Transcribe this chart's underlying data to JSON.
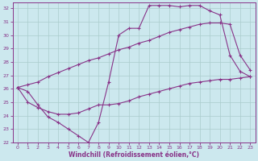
{
  "xlabel": "Windchill (Refroidissement éolien,°C)",
  "xlim": [
    -0.5,
    23.5
  ],
  "ylim": [
    22,
    32.4
  ],
  "yticks": [
    22,
    23,
    24,
    25,
    26,
    27,
    28,
    29,
    30,
    31,
    32
  ],
  "xticks": [
    0,
    1,
    2,
    3,
    4,
    5,
    6,
    7,
    8,
    9,
    10,
    11,
    12,
    13,
    14,
    15,
    16,
    17,
    18,
    19,
    20,
    21,
    22,
    23
  ],
  "bg_color": "#cce8ee",
  "line_color": "#883388",
  "grid_color": "#aacccc",
  "line1_x": [
    0,
    1,
    2,
    3,
    4,
    5,
    6,
    7,
    8,
    9,
    10,
    11,
    12,
    13,
    14,
    15,
    16,
    17,
    18,
    19,
    20,
    21,
    22,
    23
  ],
  "line1_y": [
    26.1,
    25.8,
    24.8,
    23.9,
    23.5,
    23.0,
    22.5,
    22.0,
    23.5,
    26.5,
    30.0,
    30.5,
    30.5,
    32.2,
    32.2,
    32.2,
    32.1,
    32.2,
    32.2,
    31.8,
    31.5,
    28.5,
    27.3,
    26.9
  ],
  "line2_x": [
    0,
    1,
    2,
    3,
    4,
    5,
    6,
    7,
    8,
    9,
    10,
    11,
    12,
    13,
    14,
    15,
    16,
    17,
    18,
    19,
    20,
    21,
    22,
    23
  ],
  "line2_y": [
    26.1,
    26.3,
    26.5,
    26.9,
    27.2,
    27.5,
    27.8,
    28.1,
    28.3,
    28.6,
    28.9,
    29.1,
    29.4,
    29.6,
    29.9,
    30.2,
    30.4,
    30.6,
    30.8,
    30.9,
    30.9,
    30.8,
    28.5,
    27.4
  ],
  "line3_x": [
    0,
    1,
    2,
    3,
    4,
    5,
    6,
    7,
    8,
    9,
    10,
    11,
    12,
    13,
    14,
    15,
    16,
    17,
    18,
    19,
    20,
    21,
    22,
    23
  ],
  "line3_y": [
    26.1,
    25.0,
    24.6,
    24.3,
    24.1,
    24.1,
    24.2,
    24.5,
    24.8,
    24.8,
    24.9,
    25.1,
    25.4,
    25.6,
    25.8,
    26.0,
    26.2,
    26.4,
    26.5,
    26.6,
    26.7,
    26.7,
    26.8,
    26.9
  ]
}
